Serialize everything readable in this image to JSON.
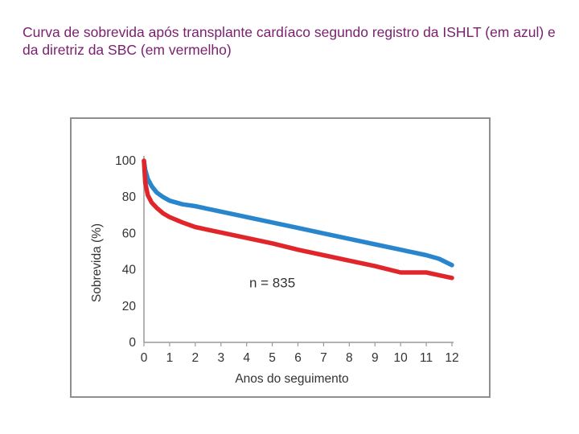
{
  "slide": {
    "caption": "Curva de sobrevida após transplante cardíaco segundo registro da ISHLT (em azul) e da diretriz da SBC (em vermelho)"
  },
  "chart_data": {
    "type": "line",
    "title": "",
    "xlabel": "Anos do seguimento",
    "ylabel": "Sobrevida (%)",
    "xlim": [
      0,
      12
    ],
    "ylim": [
      0,
      100
    ],
    "xticks": [
      "0",
      "1",
      "2",
      "3",
      "4",
      "5",
      "6",
      "7",
      "8",
      "9",
      "10",
      "11",
      "12"
    ],
    "yticks": [
      "100",
      "80",
      "60",
      "40",
      "20",
      "0"
    ],
    "grid": false,
    "legend": "none",
    "annotations": [
      {
        "text": "n = 835",
        "x": 5.0,
        "y": 33
      }
    ],
    "series": [
      {
        "color": "#2a86cc",
        "x": [
          0,
          0.05,
          0.15,
          0.3,
          0.5,
          0.75,
          1,
          1.5,
          2,
          3,
          4,
          5,
          6,
          7,
          8,
          9,
          10,
          10.5,
          11,
          11.5,
          12
        ],
        "y": [
          100,
          95,
          90,
          86,
          82.5,
          80,
          78,
          76,
          75,
          72,
          69,
          66,
          63,
          60,
          57,
          54,
          51,
          49.5,
          48,
          46,
          42.5
        ]
      },
      {
        "color": "#e0262b",
        "x": [
          0,
          0.05,
          0.15,
          0.3,
          0.5,
          0.75,
          1,
          1.5,
          2,
          3,
          4,
          5,
          6,
          7,
          8,
          9,
          10,
          10.5,
          11,
          11.5,
          12
        ],
        "y": [
          100,
          88,
          81,
          77,
          74,
          71,
          69,
          66,
          63.5,
          60.5,
          57.5,
          54.5,
          51,
          48,
          45,
          42,
          38.5,
          38.5,
          38.5,
          37,
          35.5
        ]
      }
    ]
  }
}
